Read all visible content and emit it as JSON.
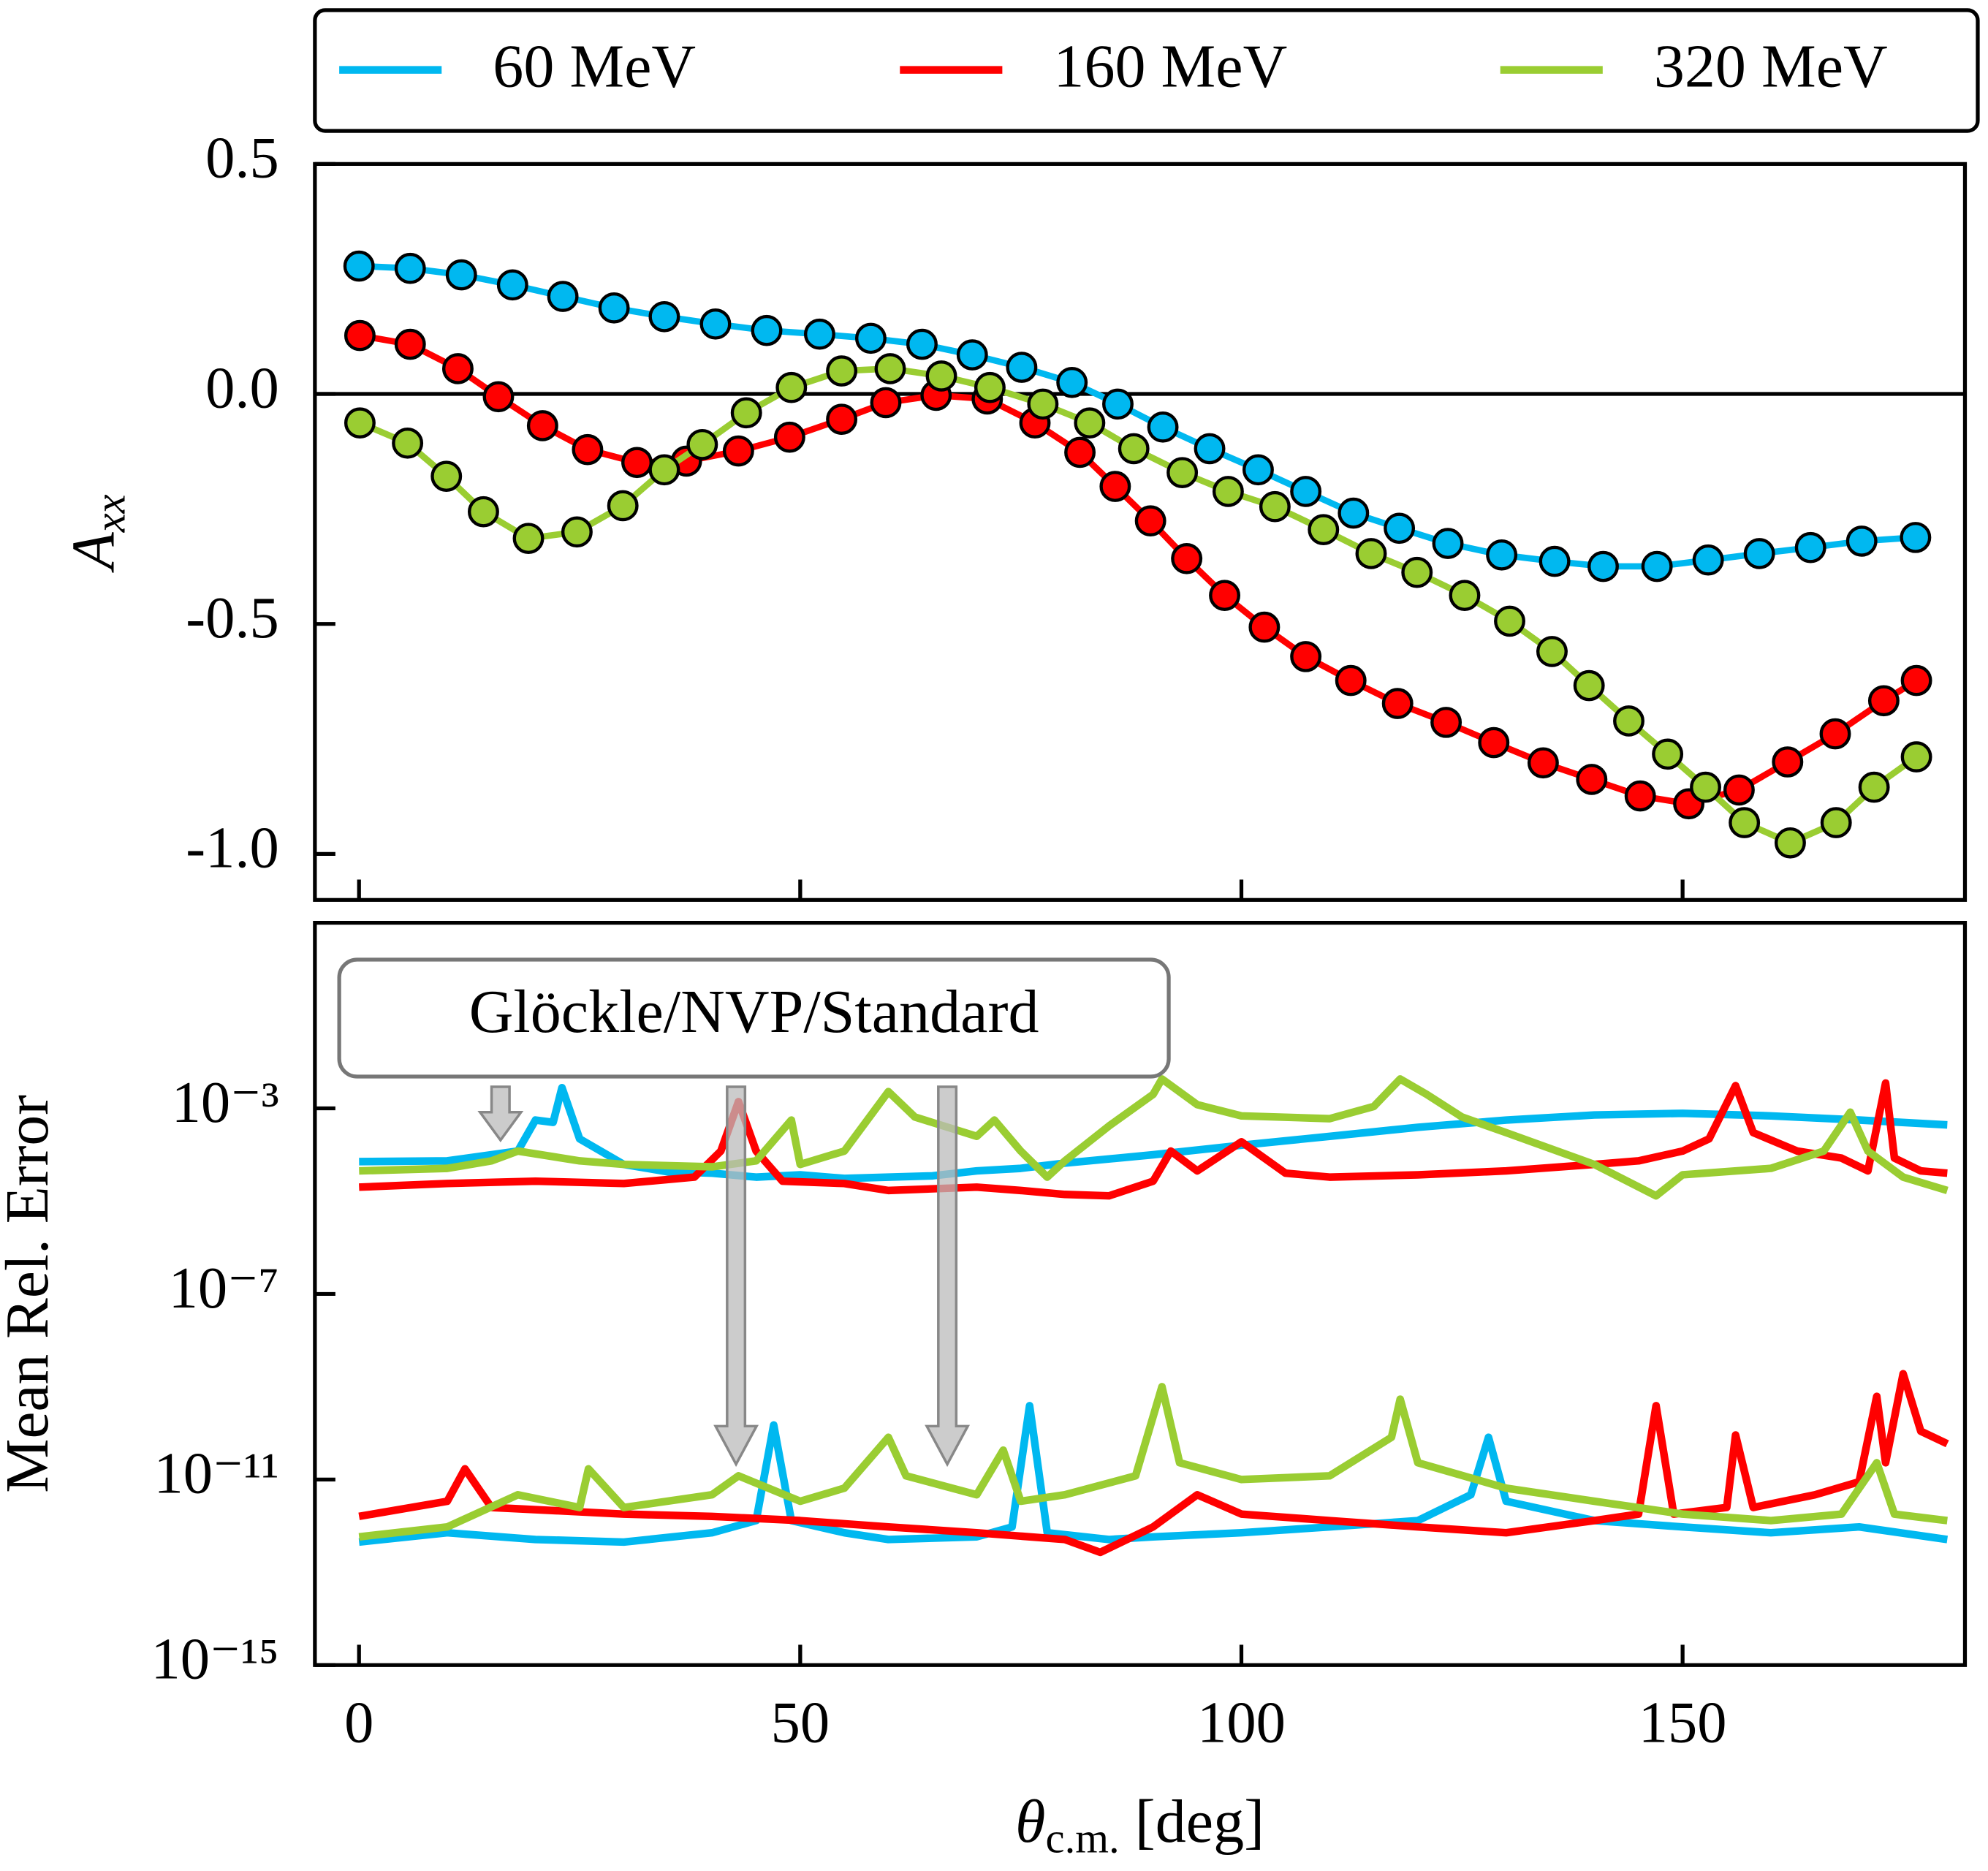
{
  "chart_data": [
    {
      "type": "line",
      "markers": true,
      "ylabel": "Axx",
      "xlim": [
        -5,
        182
      ],
      "ylim": [
        -1.1,
        0.5
      ],
      "yticks": [
        0.5,
        {
          "value": 0,
          "label": "0.0"
        },
        {
          "value": -0.5,
          "label": "-0.5"
        },
        {
          "value": -1.0,
          "label": "-1.0"
        }
      ],
      "legend": "above",
      "series": [
        {
          "name": "60 MeV",
          "color": "#00b8f0",
          "x": [
            0,
            5.8,
            11.6,
            17.4,
            23.1,
            28.9,
            34.6,
            40.4,
            46.2,
            52.2,
            58.0,
            63.8,
            69.5,
            75.1,
            80.8,
            86.0,
            91.1,
            96.4,
            101.9,
            107.3,
            112.7,
            117.9,
            123.4,
            129.5,
            135.5,
            141.0,
            147.1,
            152.9,
            158.7,
            164.5,
            170.3,
            176.4
          ],
          "values": [
            0.278,
            0.273,
            0.259,
            0.237,
            0.212,
            0.187,
            0.168,
            0.152,
            0.138,
            0.13,
            0.121,
            0.108,
            0.085,
            0.058,
            0.025,
            -0.022,
            -0.072,
            -0.119,
            -0.165,
            -0.212,
            -0.259,
            -0.292,
            -0.325,
            -0.35,
            -0.364,
            -0.375,
            -0.375,
            -0.361,
            -0.347,
            -0.334,
            -0.32,
            -0.312
          ]
        },
        {
          "name": "160 MeV",
          "color": "#ff0000",
          "x": [
            0.1,
            5.8,
            11.2,
            15.8,
            20.8,
            25.9,
            31.5,
            37.1,
            43.0,
            48.8,
            54.7,
            59.7,
            65.4,
            71.2,
            76.6,
            81.7,
            85.7,
            89.7,
            93.8,
            98.1,
            102.6,
            107.3,
            112.4,
            117.7,
            123.2,
            128.6,
            134.2,
            139.7,
            145.2,
            150.7,
            156.4,
            161.9,
            167.3,
            172.8,
            176.5
          ],
          "values": [
            0.127,
            0.108,
            0.055,
            -0.006,
            -0.069,
            -0.121,
            -0.149,
            -0.146,
            -0.124,
            -0.094,
            -0.055,
            -0.019,
            -0.003,
            -0.011,
            -0.063,
            -0.127,
            -0.201,
            -0.276,
            -0.358,
            -0.438,
            -0.507,
            -0.571,
            -0.623,
            -0.673,
            -0.714,
            -0.758,
            -0.802,
            -0.838,
            -0.874,
            -0.891,
            -0.861,
            -0.8,
            -0.739,
            -0.667,
            -0.623
          ]
        },
        {
          "name": "320 MeV",
          "color": "#9acd32",
          "x": [
            0.1,
            5.5,
            9.9,
            14.1,
            19.2,
            24.7,
            29.9,
            34.6,
            38.9,
            43.9,
            49.0,
            54.7,
            60.2,
            66.0,
            71.5,
            77.5,
            82.8,
            87.8,
            93.3,
            98.5,
            103.8,
            109.3,
            114.7,
            119.9,
            125.3,
            130.4,
            135.2,
            139.4,
            143.9,
            148.3,
            152.6,
            157.0,
            162.2,
            167.4,
            171.7,
            176.5
          ],
          "values": [
            -0.063,
            -0.107,
            -0.179,
            -0.256,
            -0.314,
            -0.3,
            -0.243,
            -0.165,
            -0.11,
            -0.041,
            0.014,
            0.05,
            0.055,
            0.039,
            0.014,
            -0.022,
            -0.063,
            -0.119,
            -0.171,
            -0.212,
            -0.245,
            -0.295,
            -0.347,
            -0.388,
            -0.438,
            -0.494,
            -0.56,
            -0.634,
            -0.711,
            -0.783,
            -0.855,
            -0.932,
            -0.976,
            -0.932,
            -0.855,
            -0.789
          ]
        }
      ]
    },
    {
      "type": "line",
      "yscale": "log",
      "ylabel": "Mean Rel. Error",
      "xlabel": "θc.m. [deg]",
      "annotation": "Glöckle/NVP/Standard",
      "xlim": [
        -5,
        182
      ],
      "xticks": [
        0,
        50,
        100,
        150
      ],
      "ylim": [
        1e-15,
        10
      ],
      "yticks": [
        {
          "value": 0.001,
          "label": "10⁻³"
        },
        {
          "value": 1e-07,
          "label": "10⁻⁷"
        },
        {
          "value": 1e-11,
          "label": "10⁻¹¹"
        },
        {
          "value": 1e-15,
          "label": "10⁻¹⁵"
        }
      ],
      "series": [
        {
          "color": "#00b8f0",
          "x": [
            0,
            10,
            18,
            20,
            22,
            23,
            25,
            30,
            35,
            40,
            45,
            50,
            55,
            60,
            65,
            70,
            75,
            80,
            90,
            100,
            110,
            120,
            130,
            140,
            150,
            160,
            170,
            180
          ],
          "values": [
            7.1e-05,
            7.4e-05,
            0.00012,
            0.00056,
            0.0005,
            0.0028,
            0.00022,
            6.2e-05,
            4.3e-05,
            4e-05,
            3.3e-05,
            3.7e-05,
            3.1e-05,
            3.3e-05,
            3.5e-05,
            4.5e-05,
            5.1e-05,
            6.6e-05,
            0.0001,
            0.00016,
            0.00025,
            0.00039,
            0.00056,
            0.00072,
            0.00078,
            0.00069,
            0.00056,
            0.00044
          ]
        },
        {
          "color": "#ff0000",
          "x": [
            0,
            10,
            20,
            30,
            38,
            41,
            43,
            45,
            48,
            55,
            60,
            70,
            75,
            80,
            85,
            90,
            92,
            95,
            100,
            105,
            110,
            120,
            130,
            140,
            145,
            150,
            153,
            156,
            158,
            163,
            168,
            171,
            173,
            174,
            177,
            180
          ],
          "values": [
            2e-05,
            2.4e-05,
            2.7e-05,
            2.4e-05,
            3.3e-05,
            0.00012,
            0.0014,
            0.00012,
            2.7e-05,
            2.4e-05,
            1.7e-05,
            2e-05,
            1.7e-05,
            1.4e-05,
            1.3e-05,
            2.7e-05,
            0.00012,
            4.5e-05,
            0.00019,
            4e-05,
            3.3e-05,
            3.7e-05,
            4.5e-05,
            6.2e-05,
            7.4e-05,
            0.00012,
            0.00022,
            0.0031,
            0.0003,
            0.00012,
            8.5e-05,
            4.5e-05,
            0.0035,
            8.5e-05,
            4.5e-05,
            4e-05
          ]
        },
        {
          "color": "#9acd32",
          "x": [
            0,
            10,
            15,
            18,
            25,
            30,
            40,
            45,
            49,
            50,
            55,
            60,
            63,
            70,
            72,
            75,
            78,
            80,
            85,
            90,
            91,
            95,
            100,
            110,
            115,
            118,
            121,
            125,
            130,
            140,
            147,
            150,
            160,
            166,
            169,
            171,
            175,
            180
          ],
          "values": [
            4.5e-05,
            5.1e-05,
            7.4e-05,
            0.00012,
            7.4e-05,
            6.2e-05,
            5.5e-05,
            7.4e-05,
            0.00056,
            6.2e-05,
            0.00012,
            0.0023,
            0.00065,
            0.00025,
            0.00056,
            0.00012,
            3.3e-05,
            7.4e-05,
            0.00042,
            0.002,
            0.0043,
            0.0012,
            0.00069,
            0.0006,
            0.0011,
            0.0043,
            0.002,
            0.00065,
            0.0003,
            6.2e-05,
            1.3e-05,
            3.7e-05,
            5.1e-05,
            0.00012,
            0.00083,
            0.00012,
            3.3e-05,
            1.7e-05
          ]
        },
        {
          "color": "#00b8f0",
          "x": [
            0,
            10,
            20,
            30,
            40,
            45,
            47,
            49,
            55,
            60,
            70,
            74,
            76,
            78,
            85,
            90,
            100,
            110,
            120,
            126,
            128,
            130,
            140,
            150,
            160,
            170,
            180
          ],
          "values": [
            4.5e-13,
            7.1e-13,
            5.1e-13,
            4.5e-13,
            7.1e-13,
            1.3e-12,
            1.5e-10,
            1.3e-12,
            7.1e-13,
            5.1e-13,
            5.8e-13,
            9.5e-13,
            3.9e-10,
            7.1e-13,
            5.1e-13,
            5.8e-13,
            7.1e-13,
            9.5e-13,
            1.3e-12,
            4.7e-12,
            8.1e-11,
            3.4e-12,
            1.3e-12,
            9.5e-13,
            7.1e-13,
            9.5e-13,
            5.1e-13
          ]
        },
        {
          "color": "#ff0000",
          "x": [
            0,
            10,
            12,
            15,
            30,
            40,
            50,
            60,
            70,
            80,
            84,
            90,
            95,
            100,
            110,
            120,
            130,
            140,
            145,
            147,
            149,
            155,
            156,
            158,
            165,
            170,
            172,
            173,
            175,
            177,
            180
          ],
          "values": [
            1.6e-12,
            3.4e-12,
            1.7e-11,
            2.5e-12,
            1.8e-12,
            1.6e-12,
            1.3e-12,
            9.5e-13,
            7.1e-13,
            5.1e-13,
            2.7e-13,
            9.5e-13,
            4.7e-12,
            1.8e-12,
            1.3e-12,
            9.5e-13,
            7.1e-13,
            1.3e-12,
            1.8e-12,
            3.9e-10,
            1.8e-12,
            2.5e-12,
            9.1e-11,
            2.5e-12,
            4.7e-12,
            8.9e-12,
            6.2e-10,
            2.3e-11,
            1.9e-09,
            1.1e-10,
            5.9e-11
          ]
        },
        {
          "color": "#9acd32",
          "x": [
            0,
            10,
            18,
            25,
            26,
            30,
            40,
            43,
            50,
            55,
            60,
            62,
            70,
            73,
            75,
            80,
            88,
            91,
            93,
            100,
            110,
            117,
            118,
            120,
            130,
            140,
            150,
            160,
            168,
            172,
            174,
            180
          ],
          "values": [
            5.8e-13,
            9.5e-13,
            4.7e-12,
            2.5e-12,
            1.7e-11,
            2.5e-12,
            4.7e-12,
            1.2e-11,
            3.4e-12,
            6.5e-12,
            8.1e-11,
            1.2e-11,
            4.7e-12,
            4.3e-11,
            3.4e-12,
            4.7e-12,
            1.2e-11,
            1e-09,
            2.3e-11,
            1e-11,
            1.2e-11,
            8.1e-11,
            5.4e-10,
            2.3e-11,
            6.5e-12,
            3.4e-12,
            1.8e-12,
            1.3e-12,
            1.8e-12,
            2.3e-11,
            1.8e-12,
            1.3e-12
          ]
        }
      ]
    }
  ]
}
